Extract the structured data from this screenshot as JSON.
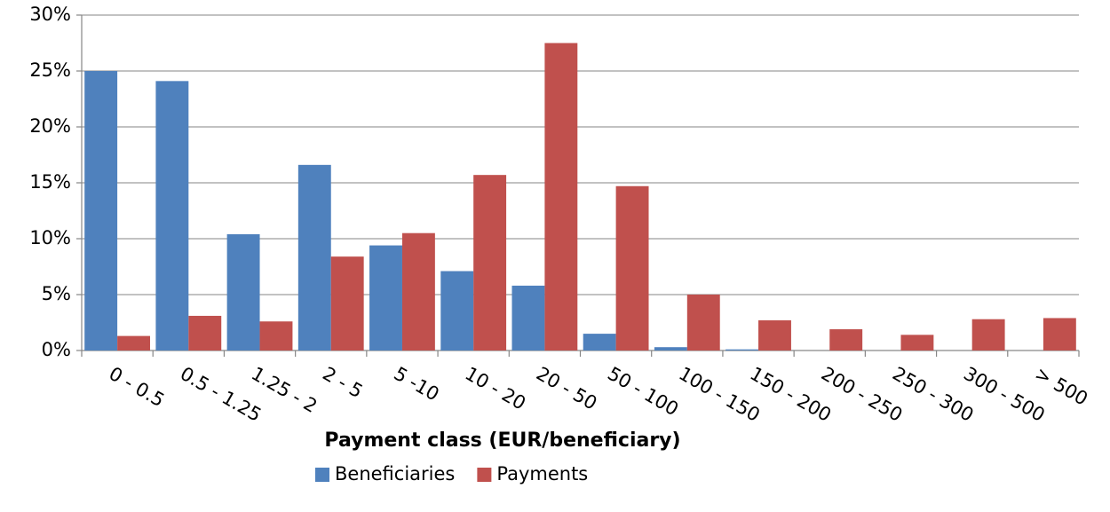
{
  "chart_data": {
    "type": "bar",
    "x_label": "Payment class (EUR/beneficiary)",
    "categories": [
      "0 - 0.5",
      "0.5 - 1.25",
      "1.25 - 2",
      "2 - 5",
      "5 -10",
      "10 - 20",
      "20 - 50",
      "50 - 100",
      "100 - 150",
      "150 - 200",
      "200 - 250",
      "250 - 300",
      "300 - 500",
      "> 500"
    ],
    "series": [
      {
        "name": "Beneficiaries",
        "color": "#4f81bd",
        "values": [
          25.0,
          24.1,
          10.4,
          16.6,
          9.4,
          7.1,
          5.8,
          1.5,
          0.3,
          0.1,
          0,
          0,
          0,
          0
        ]
      },
      {
        "name": "Payments",
        "color": "#c0504d",
        "values": [
          1.3,
          3.1,
          2.6,
          8.4,
          10.5,
          15.7,
          27.5,
          14.7,
          5.0,
          2.7,
          1.9,
          1.4,
          2.8,
          2.9
        ]
      }
    ],
    "ylim": [
      0,
      30
    ],
    "yticks": [
      {
        "value": 0,
        "label": "0%"
      },
      {
        "value": 5,
        "label": "5%"
      },
      {
        "value": 10,
        "label": "10%"
      },
      {
        "value": 15,
        "label": "15%"
      },
      {
        "value": 20,
        "label": "20%"
      },
      {
        "value": 25,
        "label": "25%"
      },
      {
        "value": 30,
        "label": "30%"
      }
    ],
    "grid": true,
    "legend": "bottom"
  }
}
